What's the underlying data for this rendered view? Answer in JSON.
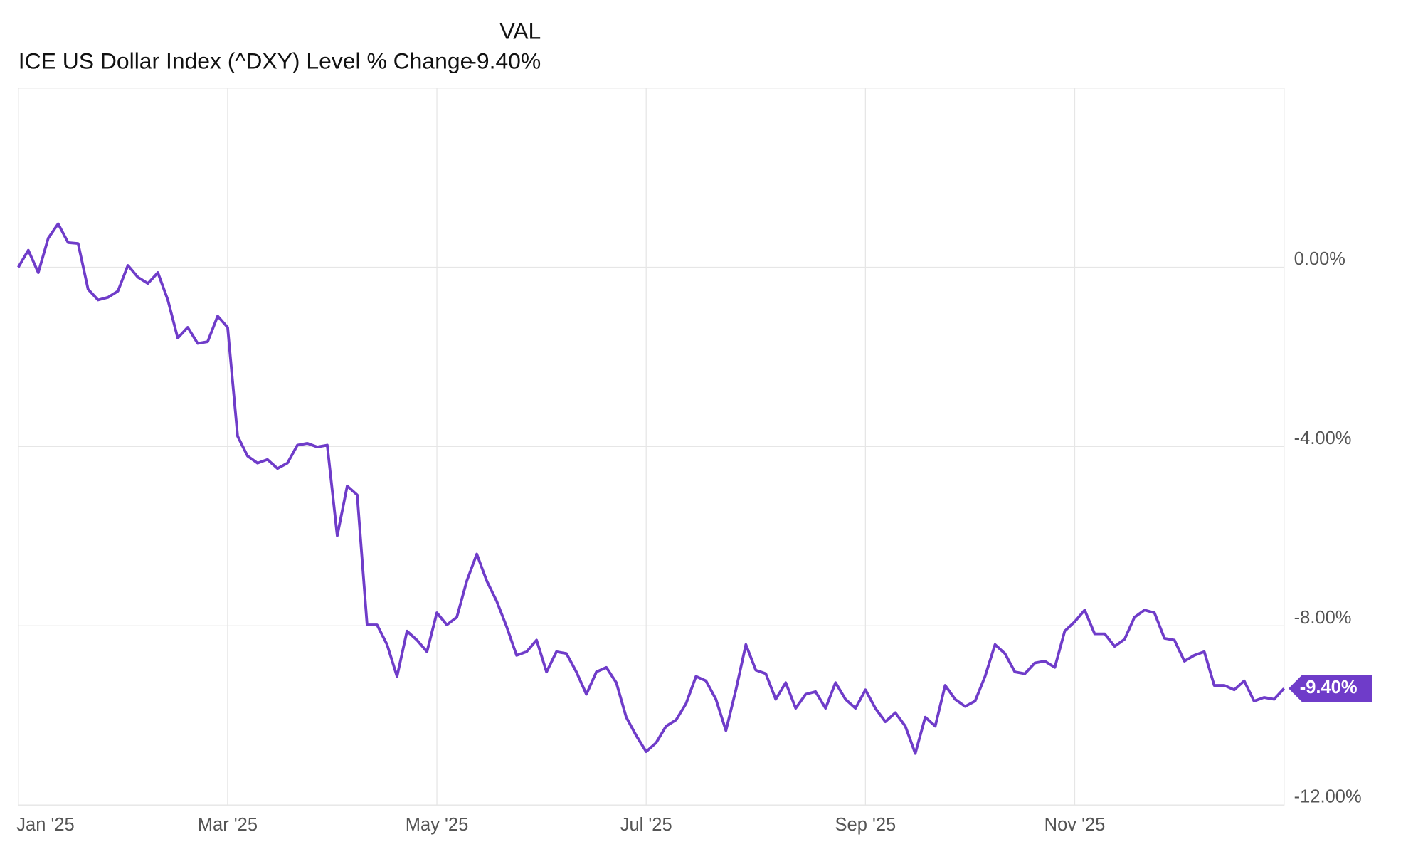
{
  "chart_data": {
    "type": "line",
    "legend_header": "VAL",
    "categories": [
      "Jan '25",
      null,
      null,
      null,
      null,
      null,
      null,
      null,
      null,
      null,
      null,
      null,
      null,
      null,
      null,
      null,
      null,
      null,
      null,
      null,
      null,
      "Mar '25",
      null,
      null,
      null,
      null,
      null,
      null,
      null,
      null,
      null,
      null,
      null,
      null,
      null,
      null,
      null,
      null,
      null,
      null,
      null,
      null,
      "May '25",
      null,
      null,
      null,
      null,
      null,
      null,
      null,
      null,
      null,
      null,
      null,
      null,
      null,
      null,
      null,
      null,
      null,
      null,
      null,
      null,
      "Jul '25",
      null,
      null,
      null,
      null,
      null,
      null,
      null,
      null,
      null,
      null,
      null,
      null,
      null,
      null,
      null,
      null,
      null,
      null,
      null,
      null,
      null,
      "Sep '25",
      null,
      null,
      null,
      null,
      null,
      null,
      null,
      null,
      null,
      null,
      null,
      null,
      null,
      null,
      null,
      null,
      null,
      null,
      null,
      null,
      "Nov '25",
      null,
      null,
      null,
      null,
      null,
      null,
      null,
      null,
      null,
      null,
      null,
      null,
      null,
      null,
      null,
      null,
      null,
      null,
      null,
      null,
      null
    ],
    "series": [
      {
        "name": "ICE US Dollar Index (^DXY) Level % Change",
        "color": "#6f3cc9",
        "legend_value": "-9.40%",
        "values": [
          0.0,
          0.38,
          -0.12,
          0.65,
          0.97,
          0.55,
          0.53,
          -0.49,
          -0.73,
          -0.67,
          -0.53,
          0.04,
          -0.22,
          -0.36,
          -0.12,
          -0.73,
          -1.58,
          -1.34,
          -1.7,
          -1.66,
          -1.09,
          -1.34,
          -3.77,
          -4.21,
          -4.37,
          -4.29,
          -4.49,
          -4.37,
          -3.97,
          -3.93,
          -4.01,
          -3.97,
          -5.99,
          -4.88,
          -5.08,
          -7.98,
          -7.98,
          -8.42,
          -9.13,
          -8.12,
          -8.32,
          -8.58,
          -7.71,
          -7.98,
          -7.81,
          -7.0,
          -6.4,
          -7.0,
          -7.45,
          -8.02,
          -8.66,
          -8.58,
          -8.32,
          -9.03,
          -8.58,
          -8.62,
          -9.03,
          -9.53,
          -9.03,
          -8.93,
          -9.27,
          -10.04,
          -10.45,
          -10.81,
          -10.61,
          -10.24,
          -10.1,
          -9.74,
          -9.13,
          -9.23,
          -9.64,
          -10.34,
          -9.43,
          -8.42,
          -8.99,
          -9.07,
          -9.64,
          -9.27,
          -9.84,
          -9.53,
          -9.47,
          -9.84,
          -9.27,
          -9.64,
          -9.84,
          -9.43,
          -9.84,
          -10.14,
          -9.94,
          -10.24,
          -10.85,
          -10.04,
          -10.24,
          -9.33,
          -9.64,
          -9.8,
          -9.68,
          -9.13,
          -8.42,
          -8.62,
          -9.03,
          -9.07,
          -8.83,
          -8.79,
          -8.93,
          -8.12,
          -7.91,
          -7.65,
          -8.18,
          -8.18,
          -8.46,
          -8.3,
          -7.81,
          -7.65,
          -7.71,
          -8.28,
          -8.32,
          -8.79,
          -8.66,
          -8.58,
          -9.33,
          -9.33,
          -9.43,
          -9.23,
          -9.68,
          -9.6,
          -9.64,
          -9.4
        ]
      }
    ],
    "ylim": [
      -12,
      4
    ],
    "yticks": [
      {
        "value": 0,
        "label": "0.00%"
      },
      {
        "value": -4,
        "label": "-4.00%"
      },
      {
        "value": -8,
        "label": "-8.00%"
      },
      {
        "value": -12,
        "label": "-12.00%"
      }
    ],
    "grid": true
  }
}
